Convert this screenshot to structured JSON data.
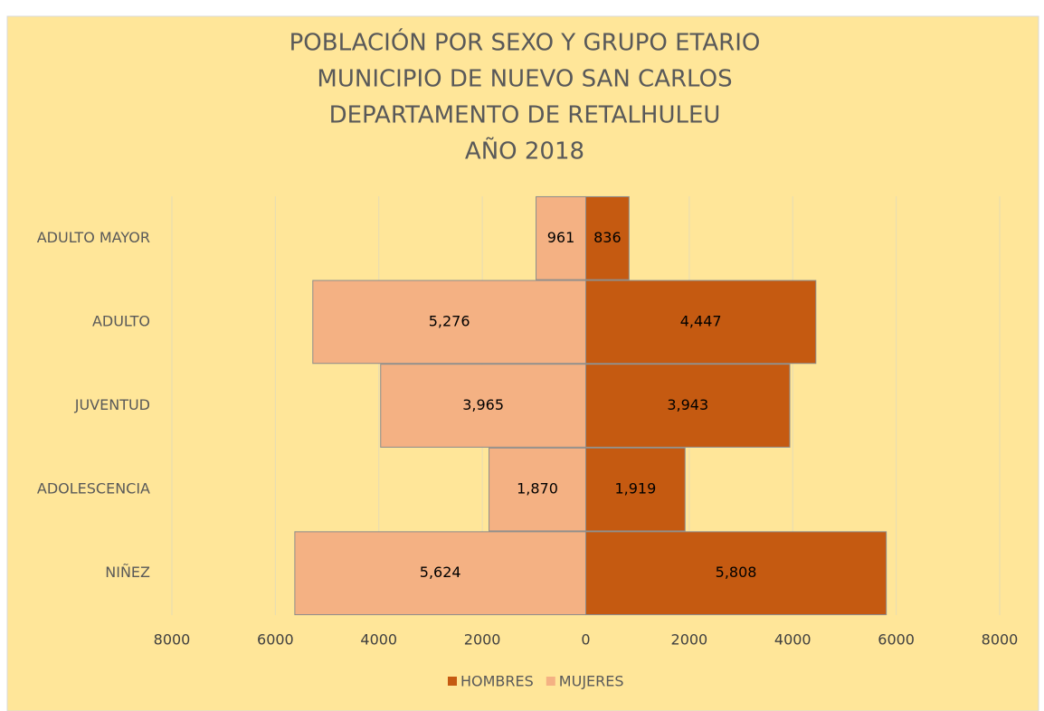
{
  "chart_data": {
    "type": "pyramid",
    "title": [
      "POBLACIÓN POR SEXO Y GRUPO ETARIO",
      "MUNICIPIO DE NUEVO SAN CARLOS",
      "DEPARTAMENTO DE RETALHULEU",
      "AÑO 2018"
    ],
    "categories": [
      "ADULTO MAYOR",
      "ADULTO",
      "JUVENTUD",
      "ADOLESCENCIA",
      "NIÑEZ"
    ],
    "series": [
      {
        "name": "HOMBRES",
        "color": "#c55a11",
        "values": [
          836,
          4447,
          3943,
          1919,
          5808
        ],
        "value_labels": [
          "836",
          "4,447",
          "3,943",
          "1,919",
          "5,808"
        ]
      },
      {
        "name": "MUJERES",
        "color": "#f4b183",
        "values": [
          -961,
          -5276,
          -3965,
          -1870,
          -5624
        ],
        "value_labels": [
          "961",
          "5,276",
          "3,965",
          "1,870",
          "5,624"
        ]
      }
    ],
    "xlim": [
      -8000,
      8000
    ],
    "xticks": [
      {
        "value": -8000,
        "label": "8000"
      },
      {
        "value": -6000,
        "label": "6000"
      },
      {
        "value": -4000,
        "label": "4000"
      },
      {
        "value": -2000,
        "label": "2000"
      },
      0,
      2000,
      4000,
      6000,
      8000
    ],
    "grid": true,
    "legend": "bottom"
  }
}
